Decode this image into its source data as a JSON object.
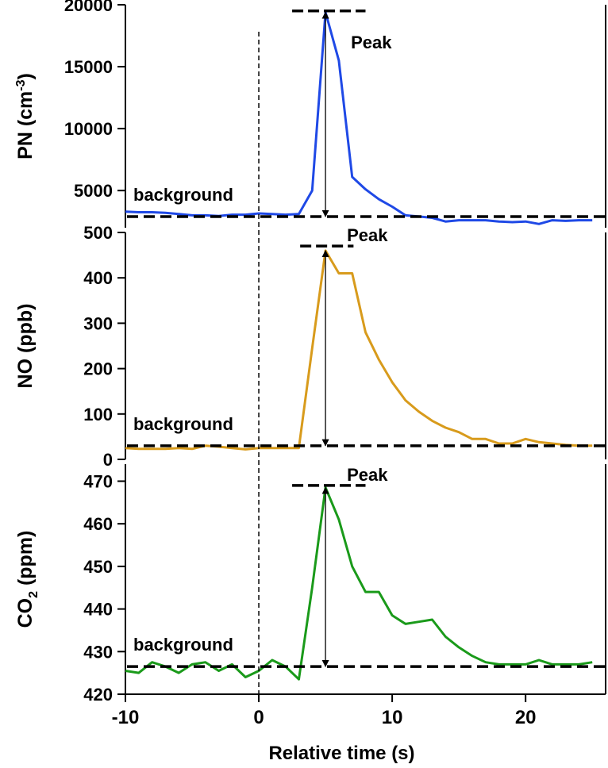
{
  "chart_data": [
    {
      "type": "line",
      "ylabel": "PN (cm⁻³)",
      "ylabel_base": "PN (cm",
      "ylabel_sup": "-3",
      "ylabel_tail": ")",
      "ylim": [
        2000,
        20000
      ],
      "yticks": [
        5000,
        10000,
        15000,
        20000
      ],
      "color": "#1f49e6",
      "background_value": 2900,
      "background_label": "background",
      "peak_label": "Peak",
      "peak_value": 19400,
      "peak_line_y": 19500,
      "peak_line_x": [
        2.5,
        8
      ],
      "arrow_x": 5,
      "series": [
        {
          "x": [
            -10,
            -9,
            -8,
            -7,
            -6,
            -5,
            -4,
            -3,
            -2,
            -1,
            0,
            1,
            2,
            3,
            4,
            5,
            6,
            7,
            8,
            9,
            10,
            11,
            12,
            13,
            14,
            15,
            16,
            17,
            18,
            19,
            20,
            21,
            22,
            23,
            24,
            25
          ],
          "values": [
            3300,
            3250,
            3250,
            3200,
            3100,
            3000,
            3000,
            2950,
            3050,
            3050,
            3150,
            3100,
            3050,
            3100,
            5000,
            19400,
            15500,
            6100,
            5100,
            4300,
            3700,
            3000,
            2900,
            2800,
            2500,
            2600,
            2600,
            2600,
            2500,
            2450,
            2500,
            2300,
            2600,
            2550,
            2600,
            2600
          ]
        }
      ]
    },
    {
      "type": "line",
      "ylabel": "NO (ppb)",
      "ylim": [
        0,
        500
      ],
      "yticks": [
        0,
        100,
        200,
        300,
        400,
        500
      ],
      "color": "#d89b1c",
      "background_value": 30,
      "background_label": "background",
      "peak_label": "Peak",
      "peak_value": 460,
      "peak_line_y": 470,
      "peak_line_x": [
        3.1,
        7.1
      ],
      "arrow_x": 5,
      "series": [
        {
          "x": [
            -10,
            -9,
            -8,
            -7,
            -6,
            -5,
            -4,
            -3,
            -2,
            -1,
            0,
            1,
            2,
            3,
            4,
            5,
            6,
            7,
            8,
            9,
            10,
            11,
            12,
            13,
            14,
            15,
            16,
            17,
            18,
            19,
            20,
            21,
            22,
            23,
            24,
            25
          ],
          "values": [
            25,
            23,
            23,
            23,
            25,
            23,
            30,
            28,
            25,
            22,
            25,
            25,
            25,
            25,
            245,
            460,
            410,
            410,
            280,
            220,
            170,
            130,
            105,
            85,
            70,
            60,
            45,
            45,
            35,
            35,
            45,
            38,
            35,
            32,
            30,
            30
          ]
        }
      ]
    },
    {
      "type": "line",
      "ylabel": "CO₂ (ppm)",
      "ylabel_base": "CO",
      "ylabel_sub": "2",
      "ylabel_tail": " (ppm)",
      "xlabel": "Relative time (s)",
      "xlim": [
        -10,
        26
      ],
      "xticks": [
        -10,
        0,
        10,
        20
      ],
      "ylim": [
        420,
        474
      ],
      "yticks": [
        420,
        430,
        440,
        450,
        460,
        470
      ],
      "color": "#1a9a1a",
      "background_value": 426.5,
      "background_label": "background",
      "peak_label": "Peak",
      "peak_value": 468.5,
      "peak_line_y": 469,
      "peak_line_x": [
        2.5,
        8
      ],
      "arrow_x": 5,
      "series": [
        {
          "x": [
            -10,
            -9,
            -8,
            -7,
            -6,
            -5,
            -4,
            -3,
            -2,
            -1,
            0,
            1,
            2,
            3,
            4,
            5,
            6,
            7,
            8,
            9,
            10,
            11,
            12,
            13,
            14,
            15,
            16,
            17,
            18,
            19,
            20,
            21,
            22,
            23,
            24,
            25
          ],
          "values": [
            425.5,
            425,
            427.5,
            426.5,
            425,
            427,
            427.5,
            425.5,
            427,
            424,
            425.5,
            428,
            426.5,
            423.5,
            445,
            468.5,
            461,
            450,
            444,
            444,
            438.5,
            436.5,
            437,
            437.5,
            433.5,
            431,
            429,
            427.5,
            427,
            427,
            427,
            428,
            427,
            427,
            427,
            427.5
          ]
        }
      ]
    }
  ]
}
